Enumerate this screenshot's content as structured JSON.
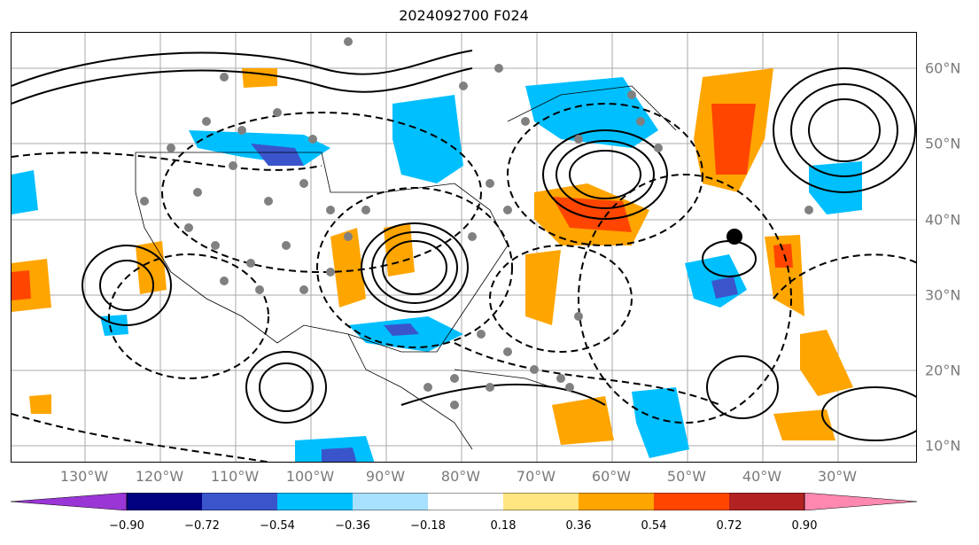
{
  "title": "2024092700 F024",
  "lon_labels": [
    "130°W",
    "120°W",
    "110°W",
    "100°W",
    "90°W",
    "80°W",
    "70°W",
    "60°W",
    "50°W",
    "40°W",
    "30°W"
  ],
  "lat_labels": [
    "60°N",
    "50°N",
    "40°N",
    "30°N",
    "20°N",
    "10°N"
  ],
  "colorbar": {
    "colors": [
      "#9b36d6",
      "#000080",
      "#3a55cc",
      "#00bfff",
      "#a8e0ff",
      "#ffffff",
      "#ffe680",
      "#ffa500",
      "#ff4500",
      "#b22222",
      "#ff88b0"
    ],
    "ticks": [
      "−0.90",
      "−0.72",
      "−0.54",
      "−0.36",
      "−0.18",
      "0.18",
      "0.36",
      "0.54",
      "0.72",
      "0.90"
    ]
  }
}
